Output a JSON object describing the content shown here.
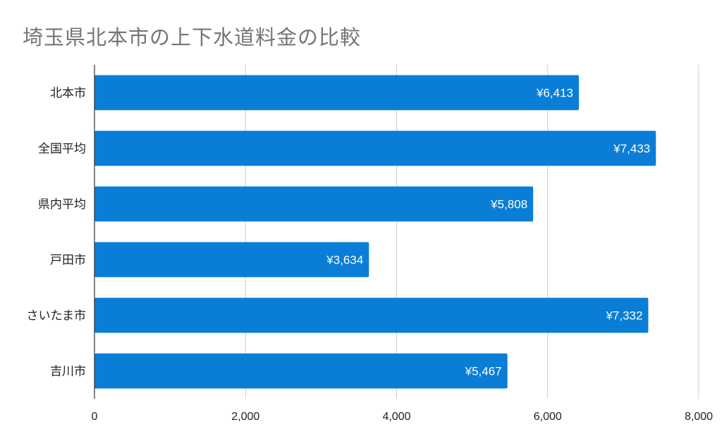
{
  "chart_data": {
    "type": "bar",
    "orientation": "horizontal",
    "title": "埼玉県北本市の上下水道料金の比較",
    "categories": [
      "北本市",
      "全国平均",
      "県内平均",
      "戸田市",
      "さいたま市",
      "吉川市"
    ],
    "values": [
      6413,
      7433,
      5808,
      3634,
      7332,
      5467
    ],
    "data_labels": [
      "¥6,413",
      "¥7,433",
      "¥5,808",
      "¥3,634",
      "¥7,332",
      "¥5,467"
    ],
    "xlim": [
      0,
      8000
    ],
    "x_ticks": [
      0,
      2000,
      4000,
      6000,
      8000
    ],
    "x_tick_labels": [
      "0",
      "2,000",
      "4,000",
      "6,000",
      "8,000"
    ],
    "grid": true,
    "legend": "none",
    "bar_color": "#0a7ed6"
  }
}
